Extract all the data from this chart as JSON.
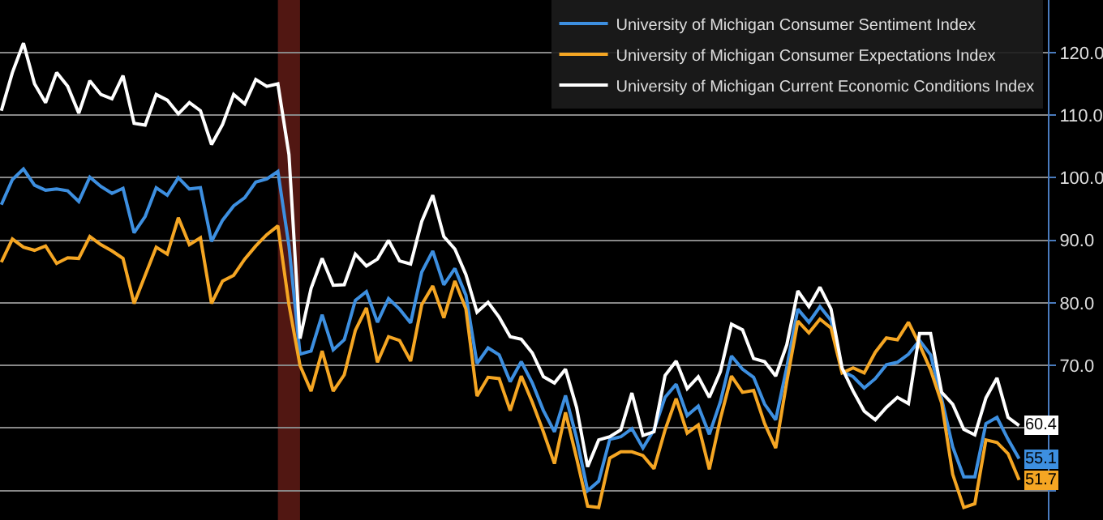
{
  "chart_data": {
    "type": "line",
    "tick_labels": "y",
    "grid": "y",
    "legend": "top right",
    "marker": "none",
    "line_style": "solid",
    "categories": [
      null,
      null,
      null,
      null,
      null,
      null,
      null,
      null,
      null,
      null,
      null,
      null,
      null,
      null,
      null,
      null,
      null,
      null,
      null,
      null,
      null,
      null,
      null,
      null,
      null,
      null,
      null,
      null,
      null,
      null,
      null,
      null,
      null,
      null,
      null,
      null,
      null,
      null,
      null,
      null,
      null,
      null,
      null,
      null,
      null,
      null,
      null,
      null,
      null,
      null,
      null,
      null,
      null,
      null,
      null,
      null,
      null,
      null,
      null,
      null,
      null,
      null,
      null,
      null,
      null,
      null,
      null,
      null,
      null,
      null,
      null,
      null,
      null,
      null,
      null,
      null,
      null,
      null,
      null,
      null,
      null,
      null,
      null,
      null,
      null,
      null,
      null,
      null,
      null,
      null,
      null,
      null,
      null
    ],
    "ylim": [
      45.3,
      128.4
    ],
    "yticks": [
      {
        "value": 50,
        "label": null
      },
      {
        "value": 60,
        "label": null
      },
      {
        "value": 70,
        "label": "70.0"
      },
      {
        "value": 80,
        "label": "80.0"
      },
      {
        "value": 90,
        "label": "90.0"
      },
      {
        "value": 100,
        "label": "100.0"
      },
      {
        "value": 110,
        "label": "110.0"
      },
      {
        "value": 120,
        "label": "120.0"
      }
    ],
    "series": [
      {
        "name": "University of Michigan Consumer Sentiment Index",
        "color": "#3d8fe0",
        "values": [
          95.7,
          99.7,
          101.4,
          98.8,
          98.0,
          98.2,
          97.9,
          96.2,
          100.1,
          98.6,
          97.5,
          98.3,
          91.2,
          93.8,
          98.4,
          97.2,
          100.0,
          98.2,
          98.4,
          89.8,
          93.2,
          95.5,
          96.8,
          99.3,
          99.8,
          101.0,
          89.1,
          71.8,
          72.3,
          78.1,
          72.5,
          74.1,
          80.4,
          81.8,
          76.9,
          80.7,
          79.0,
          76.8,
          84.9,
          88.3,
          82.9,
          85.5,
          81.2,
          70.3,
          72.8,
          71.7,
          67.4,
          70.6,
          67.2,
          62.8,
          59.4,
          65.2,
          58.4,
          50.0,
          51.5,
          58.2,
          58.6,
          59.9,
          56.8,
          59.7,
          64.9,
          67.0,
          62.0,
          63.5,
          59.0,
          64.2,
          71.5,
          69.4,
          68.1,
          63.8,
          61.3,
          69.7,
          79.0,
          76.9,
          79.4,
          77.2,
          69.1,
          68.2,
          66.4,
          67.9,
          70.1,
          70.5,
          71.8,
          74.0,
          71.7,
          64.7,
          57.0,
          52.2,
          52.2,
          60.7,
          61.7,
          58.2,
          55.1
        ],
        "value_labels": [
          null,
          null,
          null,
          null,
          null,
          null,
          null,
          null,
          null,
          null,
          null,
          null,
          null,
          null,
          null,
          null,
          null,
          null,
          null,
          null,
          null,
          null,
          null,
          null,
          null,
          null,
          null,
          null,
          null,
          null,
          null,
          null,
          null,
          null,
          null,
          null,
          null,
          null,
          null,
          null,
          null,
          null,
          null,
          null,
          null,
          null,
          null,
          null,
          null,
          null,
          null,
          null,
          null,
          null,
          null,
          null,
          null,
          null,
          null,
          null,
          null,
          null,
          null,
          null,
          null,
          null,
          null,
          null,
          null,
          null,
          null,
          null,
          null,
          null,
          null,
          null,
          null,
          null,
          null,
          null,
          null,
          null,
          null,
          null,
          null,
          null,
          null,
          null,
          null,
          null,
          null,
          null,
          "55.1"
        ]
      },
      {
        "name": "University of Michigan Consumer Expectations Index",
        "color": "#f5a623",
        "values": [
          86.5,
          90.2,
          88.9,
          88.4,
          89.1,
          86.3,
          87.2,
          87.1,
          90.6,
          89.3,
          88.3,
          87.1,
          79.9,
          84.4,
          88.9,
          87.8,
          93.6,
          89.3,
          90.4,
          79.9,
          83.5,
          84.4,
          87.0,
          89.1,
          90.9,
          92.3,
          79.7,
          70.0,
          65.9,
          72.3,
          65.9,
          68.5,
          75.6,
          79.2,
          70.5,
          74.6,
          74.0,
          70.7,
          79.7,
          82.7,
          77.6,
          83.5,
          79.0,
          65.1,
          68.1,
          67.9,
          62.8,
          68.3,
          64.1,
          59.4,
          54.3,
          62.5,
          55.2,
          47.5,
          47.3,
          55.2,
          56.2,
          56.2,
          55.6,
          53.5,
          59.7,
          64.7,
          59.2,
          60.5,
          53.4,
          61.5,
          68.3,
          65.7,
          66.0,
          60.7,
          56.8,
          67.4,
          77.1,
          75.2,
          77.4,
          76.0,
          68.8,
          69.6,
          68.8,
          72.1,
          74.4,
          74.1,
          76.9,
          73.3,
          69.3,
          64.0,
          52.6,
          47.3,
          47.9,
          58.1,
          57.7,
          55.9,
          51.7
        ],
        "value_labels": [
          null,
          null,
          null,
          null,
          null,
          null,
          null,
          null,
          null,
          null,
          null,
          null,
          null,
          null,
          null,
          null,
          null,
          null,
          null,
          null,
          null,
          null,
          null,
          null,
          null,
          null,
          null,
          null,
          null,
          null,
          null,
          null,
          null,
          null,
          null,
          null,
          null,
          null,
          null,
          null,
          null,
          null,
          null,
          null,
          null,
          null,
          null,
          null,
          null,
          null,
          null,
          null,
          null,
          null,
          null,
          null,
          null,
          null,
          null,
          null,
          null,
          null,
          null,
          null,
          null,
          null,
          null,
          null,
          null,
          null,
          null,
          null,
          null,
          null,
          null,
          null,
          null,
          null,
          null,
          null,
          null,
          null,
          null,
          null,
          null,
          null,
          null,
          null,
          null,
          null,
          null,
          null,
          "51.7"
        ]
      },
      {
        "name": "University of Michigan Current Economic Conditions Index",
        "color": "#ffffff",
        "values": [
          110.7,
          116.8,
          121.5,
          115.0,
          112.0,
          116.8,
          114.6,
          110.3,
          115.5,
          113.3,
          112.6,
          116.3,
          108.7,
          108.4,
          113.3,
          112.4,
          110.2,
          112.0,
          110.7,
          105.3,
          108.5,
          113.3,
          111.8,
          115.7,
          114.6,
          115.0,
          103.7,
          74.3,
          82.3,
          87.1,
          82.8,
          82.9,
          87.8,
          85.9,
          87.0,
          90.0,
          86.7,
          86.2,
          93.0,
          97.2,
          90.6,
          88.6,
          84.5,
          78.5,
          80.1,
          77.7,
          74.6,
          74.2,
          72.0,
          68.2,
          67.2,
          69.4,
          63.3,
          53.8,
          58.1,
          58.6,
          59.7,
          65.6,
          58.8,
          59.4,
          68.4,
          70.7,
          66.3,
          68.2,
          64.9,
          69.0,
          76.6,
          75.7,
          71.1,
          70.6,
          68.3,
          73.3,
          81.9,
          79.4,
          82.5,
          79.0,
          69.6,
          65.9,
          62.7,
          61.3,
          63.3,
          64.9,
          63.9,
          75.1,
          75.1,
          65.7,
          63.8,
          59.8,
          58.9,
          64.8,
          68.0,
          61.7,
          60.4
        ],
        "value_labels": [
          null,
          null,
          null,
          null,
          null,
          null,
          null,
          null,
          null,
          null,
          null,
          null,
          null,
          null,
          null,
          null,
          null,
          null,
          null,
          null,
          null,
          null,
          null,
          null,
          null,
          null,
          null,
          null,
          null,
          null,
          null,
          null,
          null,
          null,
          null,
          null,
          null,
          null,
          null,
          null,
          null,
          null,
          null,
          null,
          null,
          null,
          null,
          null,
          null,
          null,
          null,
          null,
          null,
          null,
          null,
          null,
          null,
          null,
          null,
          null,
          null,
          null,
          null,
          null,
          null,
          null,
          null,
          null,
          null,
          null,
          null,
          null,
          null,
          null,
          null,
          null,
          null,
          null,
          null,
          null,
          null,
          null,
          null,
          null,
          null,
          null,
          null,
          null,
          null,
          null,
          null,
          null,
          "60.4"
        ]
      }
    ]
  }
}
